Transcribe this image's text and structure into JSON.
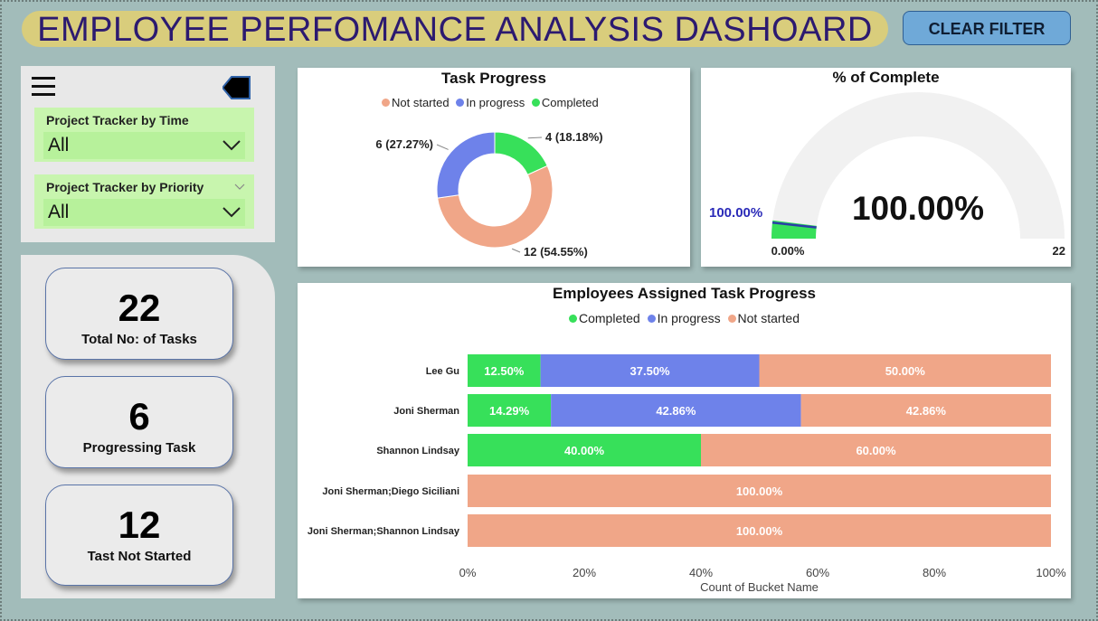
{
  "header": {
    "title": "EMPLOYEE PERFOMANCE ANALYSIS DASHOARD",
    "clear_filter": "CLEAR FILTER"
  },
  "filters": {
    "time": {
      "label": "Project Tracker by Time",
      "value": "All"
    },
    "priority": {
      "label": "Project Tracker by Priority",
      "value": "All"
    }
  },
  "icons": [
    "hamburger-menu-icon",
    "back-arrow-icon",
    "chevron-down-icon"
  ],
  "kpis": [
    {
      "value": "22",
      "label": "Total No: of Tasks"
    },
    {
      "value": "6",
      "label": "Progressing Task"
    },
    {
      "value": "12",
      "label": "Tast Not Started"
    }
  ],
  "colors": {
    "not_started": "#f0a688",
    "in_progress": "#6e82ea",
    "completed": "#37e05a",
    "title_pill": "#d9cd7c",
    "title_text": "#2c1a70",
    "button": "#6fa9d8"
  },
  "chart_data": [
    {
      "type": "pie",
      "title": "Task Progress",
      "legend_position": "top",
      "categories": [
        "Not started",
        "In progress",
        "Completed"
      ],
      "values": [
        12,
        6,
        4
      ],
      "labels": [
        "12 (54.55%)",
        "6 (27.27%)",
        "4 (18.18%)"
      ]
    },
    {
      "type": "gauge",
      "title": "% of Complete",
      "value": "100.00%",
      "min_label": "0.00%",
      "max_label": "22",
      "target_label": "100.00%",
      "fill_fraction": 0.0,
      "target_fraction": 0.0
    },
    {
      "type": "bar",
      "title": "Employees Assigned Task Progress",
      "legend_position": "top",
      "stacked": "100%",
      "xlabel": "Count of Bucket Name",
      "xticks": [
        "0%",
        "20%",
        "40%",
        "60%",
        "80%",
        "100%"
      ],
      "categories": [
        "Lee Gu",
        "Joni Sherman",
        "Shannon Lindsay",
        "Joni Sherman;Diego Siciliani",
        "Joni Sherman;Shannon Lindsay"
      ],
      "series": [
        {
          "name": "Completed",
          "values": [
            12.5,
            14.29,
            40.0,
            0,
            0
          ],
          "labels": [
            "12.50%",
            "14.29%",
            "40.00%",
            "",
            ""
          ]
        },
        {
          "name": "In progress",
          "values": [
            37.5,
            42.86,
            0,
            0,
            0
          ],
          "labels": [
            "37.50%",
            "42.86%",
            "",
            "",
            ""
          ]
        },
        {
          "name": "Not started",
          "values": [
            50.0,
            42.86,
            60.0,
            100.0,
            100.0
          ],
          "labels": [
            "50.00%",
            "42.86%",
            "60.00%",
            "100.00%",
            "100.00%"
          ]
        }
      ]
    }
  ]
}
